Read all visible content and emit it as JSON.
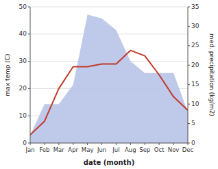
{
  "chart_data": {
    "type": "line",
    "categories": [
      "Jan",
      "Feb",
      "Mar",
      "Apr",
      "May",
      "Jun",
      "Jul",
      "Aug",
      "Sep",
      "Oct",
      "Nov",
      "Dec"
    ],
    "series": [
      {
        "type": "area",
        "axis": "y2",
        "color": "#b8c4e8",
        "values": [
          2,
          10,
          10,
          15,
          33,
          32,
          29,
          21,
          18,
          18,
          18,
          8
        ]
      },
      {
        "type": "line",
        "color": "#c0392b",
        "values": [
          3,
          8,
          20,
          28,
          28,
          29,
          29,
          34,
          32,
          25,
          17,
          12
        ]
      }
    ],
    "xlabel": "date (month)",
    "ylabel": "max temp (C)",
    "y2label": "med. precipitation (kg/m2)",
    "ylim": [
      0,
      50
    ],
    "yticks": [
      0,
      10,
      20,
      30,
      40,
      50
    ],
    "y2lim": [
      0,
      35
    ],
    "y2ticks": [
      0,
      5,
      10,
      15,
      20,
      25,
      30,
      35
    ],
    "grid": true
  }
}
